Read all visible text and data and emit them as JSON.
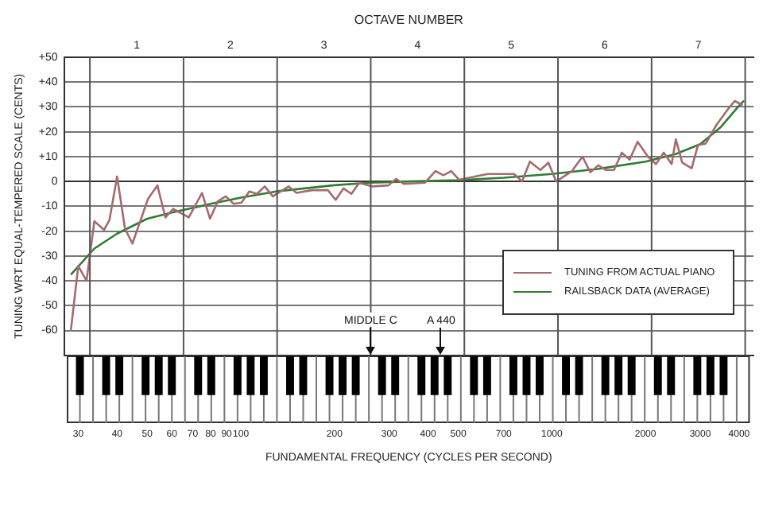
{
  "chart_data": {
    "type": "line",
    "xlabel": "FUNDAMENTAL FREQUENCY (CYCLES PER SECOND)",
    "ylabel": "TUNING WRT EQUAL-TEMPERED SCALE (CENTS)",
    "x2label": "OCTAVE NUMBER",
    "log": "x",
    "xlim": [
      27,
      4450
    ],
    "xticks": [
      30,
      40,
      50,
      60,
      70,
      80,
      90,
      100,
      200,
      300,
      400,
      500,
      700,
      1000,
      2000,
      3000,
      4000
    ],
    "x2lim": [
      0.223,
      7.588
    ],
    "x2ticks": [
      1,
      2,
      3,
      4,
      5,
      6,
      7
    ],
    "ylim": [
      -70,
      50
    ],
    "yticks": [
      -60,
      -50,
      -40,
      -30,
      -20,
      -10,
      0,
      {
        "value": 10,
        "label": "+10"
      },
      {
        "value": 20,
        "label": "+20"
      },
      {
        "value": 30,
        "label": "+30"
      },
      {
        "value": 40,
        "label": "+40"
      },
      {
        "value": 50,
        "label": "+50"
      }
    ],
    "grid": "y",
    "legend": "bottom right",
    "marker": "none",
    "line_style": "solid",
    "ref_lines": [
      {
        "axis": "x",
        "value": 32.7,
        "color": "#555555"
      },
      {
        "axis": "x",
        "value": 65.41,
        "color": "#555555"
      },
      {
        "axis": "x",
        "value": 130.81,
        "color": "#555555"
      },
      {
        "axis": "x",
        "value": 261.63,
        "color": "#555555"
      },
      {
        "axis": "x",
        "value": 523.25,
        "color": "#555555"
      },
      {
        "axis": "x",
        "value": 1046.5,
        "color": "#555555"
      },
      {
        "axis": "x",
        "value": 2093,
        "color": "#555555"
      },
      {
        "axis": "x",
        "value": 4186,
        "color": "#555555"
      }
    ],
    "annotations": [
      {
        "text": "MIDDLE C",
        "x": 261.63
      },
      {
        "text": "A 440",
        "x": 440
      }
    ],
    "series": [
      {
        "name": "TUNING FROM ACTUAL PIANO",
        "color": "#a56a6e",
        "x": [
          28.4,
          30,
          31.9,
          33.8,
          36.3,
          37.8,
          40,
          42.4,
          44.8,
          50.3,
          53.9,
          57.2,
          60.6,
          68,
          75,
          79.6,
          84.3,
          89.4,
          94.8,
          100.5,
          106.4,
          112.7,
          119.4,
          126.7,
          142.5,
          151,
          169.4,
          190.5,
          201.8,
          213.8,
          226.8,
          240.3,
          264.8,
          297.6,
          315.6,
          335,
          391,
          422.6,
          448,
          474.6,
          503,
          622,
          756,
          802,
          850,
          919,
          975,
          1033,
          1161,
          1254,
          1330,
          1410,
          1494,
          1584,
          1679,
          1779,
          1887,
          2038,
          2161,
          2291,
          2428,
          2505,
          2625,
          2816,
          2950,
          3127,
          3380,
          3653,
          3872,
          4105
        ],
        "values": [
          -60,
          -34,
          -40,
          -16,
          -19.5,
          -15.5,
          2,
          -19,
          -25,
          -7,
          -1.6,
          -14.5,
          -11,
          -14.5,
          -4.6,
          -15,
          -8,
          -6,
          -9,
          -8.5,
          -4,
          -5,
          -2,
          -6,
          -2,
          -4.6,
          -3.5,
          -3.5,
          -7.4,
          -2.8,
          -5,
          -0.5,
          -2,
          -1.6,
          1,
          -1,
          -0.5,
          4.2,
          2.5,
          4.2,
          0.7,
          3,
          3,
          0,
          8,
          4.6,
          7.6,
          0,
          4.2,
          10,
          3.7,
          6.5,
          4.6,
          4.6,
          11.6,
          8.8,
          16,
          10,
          7,
          11.6,
          7,
          17,
          7.6,
          5.3,
          14.6,
          15.3,
          22.7,
          28.5,
          32.4,
          30.8
        ]
      },
      {
        "name": "RAILSBACK DATA (AVERAGE)",
        "color": "#2e7d32",
        "x": [
          28.4,
          33.8,
          40,
          50,
          60,
          80,
          100,
          130,
          200,
          260,
          350,
          500,
          700,
          1000,
          1400,
          2000,
          2500,
          3000,
          3500,
          4000,
          4150
        ],
        "values": [
          -37.5,
          -27,
          -21,
          -15,
          -12.5,
          -9,
          -6.5,
          -4,
          -1.5,
          -0.5,
          0,
          0.5,
          1.5,
          3,
          5,
          8,
          11,
          15,
          22,
          30.5,
          32.5
        ]
      }
    ]
  }
}
